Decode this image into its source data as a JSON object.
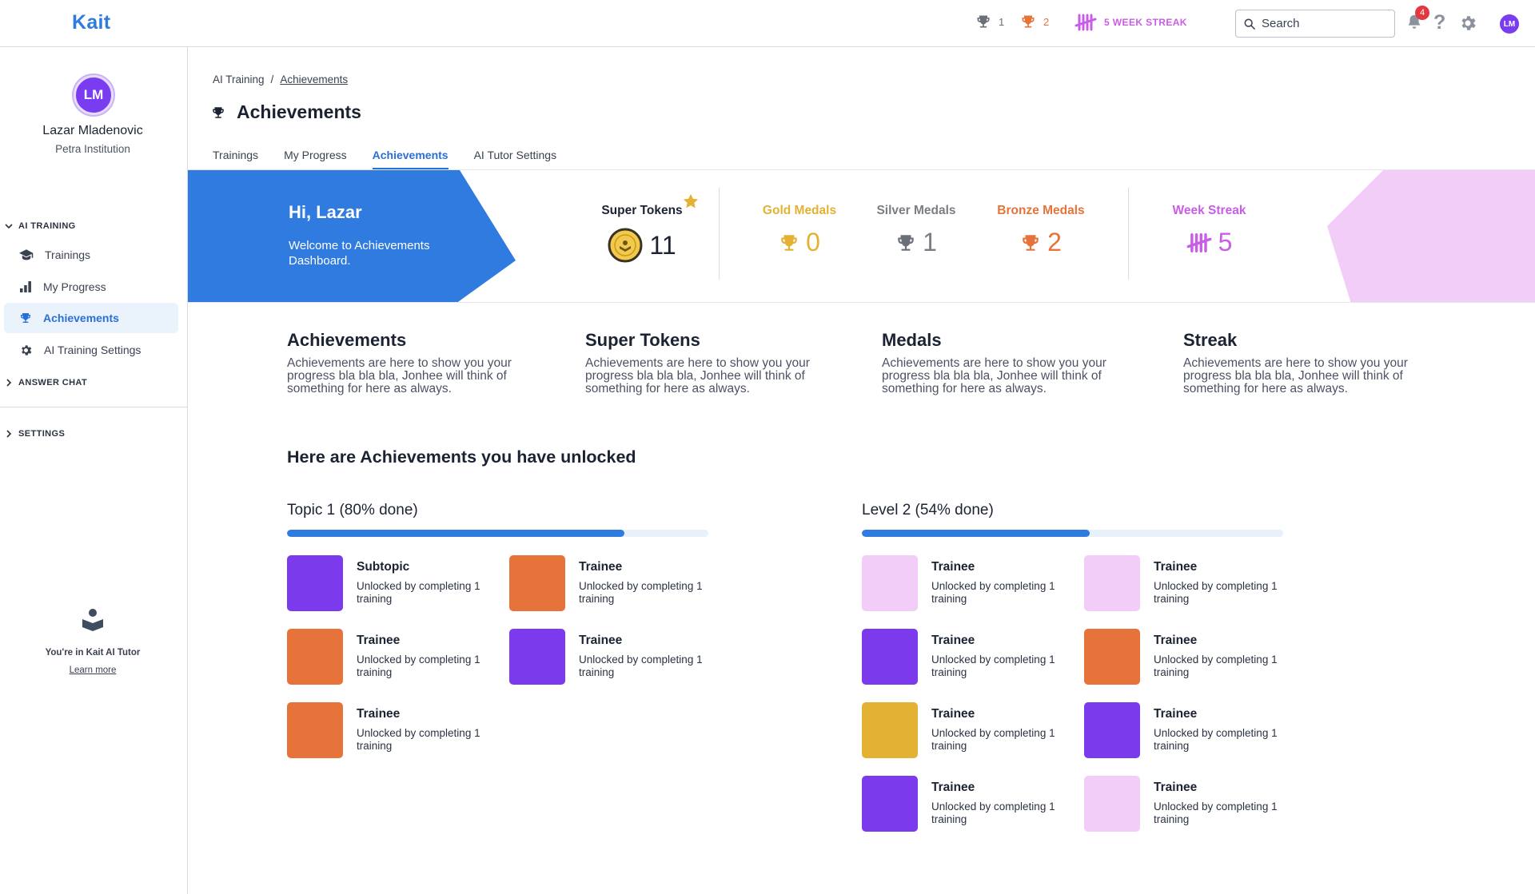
{
  "app": {
    "logo": "Kait"
  },
  "topbar": {
    "silver_count": "1",
    "bronze_count": "2",
    "streak_label": "5 WEEK STREAK",
    "search_placeholder": "Search",
    "notifications_count": "4",
    "avatar_initials": "LM"
  },
  "sidebar": {
    "avatar_initials": "LM",
    "user_name": "Lazar Mladenovic",
    "institution": "Petra Institution",
    "sections": {
      "ai_training": "AI TRAINING",
      "answer_chat": "ANSWER CHAT",
      "settings": "SETTINGS"
    },
    "items": [
      {
        "label": "Trainings",
        "icon": "graduation-cap-icon"
      },
      {
        "label": "My Progress",
        "icon": "bar-chart-icon"
      },
      {
        "label": "Achievements",
        "icon": "trophy-icon",
        "active": true
      },
      {
        "label": "AI Training Settings",
        "icon": "gear-sparkle-icon"
      }
    ],
    "tutor_text": "You're in Kait AI Tutor",
    "learn_more": "Learn more"
  },
  "breadcrumb": {
    "parent": "AI Training",
    "separator": "/",
    "current": "Achievements"
  },
  "page": {
    "title": "Achievements"
  },
  "tabs": [
    {
      "label": "Trainings"
    },
    {
      "label": "My Progress"
    },
    {
      "label": "Achievements",
      "active": true
    },
    {
      "label": "AI Tutor Settings"
    }
  ],
  "banner": {
    "greeting": "Hi, Lazar",
    "welcome": "Welcome to Achievements Dashboard.",
    "super_tokens": {
      "label": "Super Tokens",
      "value": "11"
    },
    "gold": {
      "label": "Gold Medals",
      "value": "0"
    },
    "silver": {
      "label": "Silver Medals",
      "value": "1"
    },
    "bronze": {
      "label": "Bronze Medals",
      "value": "2"
    },
    "streak": {
      "label": "Week Streak",
      "value": "5"
    }
  },
  "info": [
    {
      "title": "Achievements",
      "text": "Achievements are here to show you your progress bla bla bla, Jonhee will think of something for here as always."
    },
    {
      "title": "Super Tokens",
      "text": "Achievements are here to show you your progress bla bla bla, Jonhee will think of something for here as always."
    },
    {
      "title": "Medals",
      "text": "Achievements are here to show you your progress bla bla bla, Jonhee will think of something for here as always."
    },
    {
      "title": "Streak",
      "text": "Achievements are here to show you your progress bla bla bla, Jonhee will think of something for here as always."
    }
  ],
  "unlocked_title": "Here are Achievements you have unlocked",
  "groups": [
    {
      "title": "Topic 1 (80% done)",
      "progress": 0.8,
      "items": [
        {
          "title": "Subtopic",
          "desc": "Unlocked by completing 1 training",
          "color": "#7c3aed"
        },
        {
          "title": "Trainee",
          "desc": "Unlocked by completing 1 training",
          "color": "#e5733a"
        },
        {
          "title": "Trainee",
          "desc": "Unlocked by completing 1 training",
          "color": "#e5733a"
        },
        {
          "title": "Trainee",
          "desc": "Unlocked by completing 1 training",
          "color": "#7c3aed"
        },
        {
          "title": "Trainee",
          "desc": "Unlocked by completing 1 training",
          "color": "#e5733a"
        }
      ]
    },
    {
      "title": "Level 2 (54% done)",
      "progress": 0.54,
      "items": [
        {
          "title": "Trainee",
          "desc": "Unlocked by completing 1 training",
          "color": "#f2cdf8"
        },
        {
          "title": "Trainee",
          "desc": "Unlocked by completing 1 training",
          "color": "#f2cdf8"
        },
        {
          "title": "Trainee",
          "desc": "Unlocked by completing 1 training",
          "color": "#7c3aed"
        },
        {
          "title": "Trainee",
          "desc": "Unlocked by completing 1 training",
          "color": "#e5733a"
        },
        {
          "title": "Trainee",
          "desc": "Unlocked by completing 1 training",
          "color": "#e3b234"
        },
        {
          "title": "Trainee",
          "desc": "Unlocked by completing 1 training",
          "color": "#7c3aed"
        },
        {
          "title": "Trainee",
          "desc": "Unlocked by completing 1 training",
          "color": "#7c3aed"
        },
        {
          "title": "Trainee",
          "desc": "Unlocked by completing 1 training",
          "color": "#f2cdf8"
        }
      ]
    }
  ],
  "colors": {
    "brand_blue": "#2f7be0",
    "gold": "#e3b234",
    "silver": "#7a7d83",
    "bronze": "#e5733a",
    "streak": "#c95ee6"
  }
}
